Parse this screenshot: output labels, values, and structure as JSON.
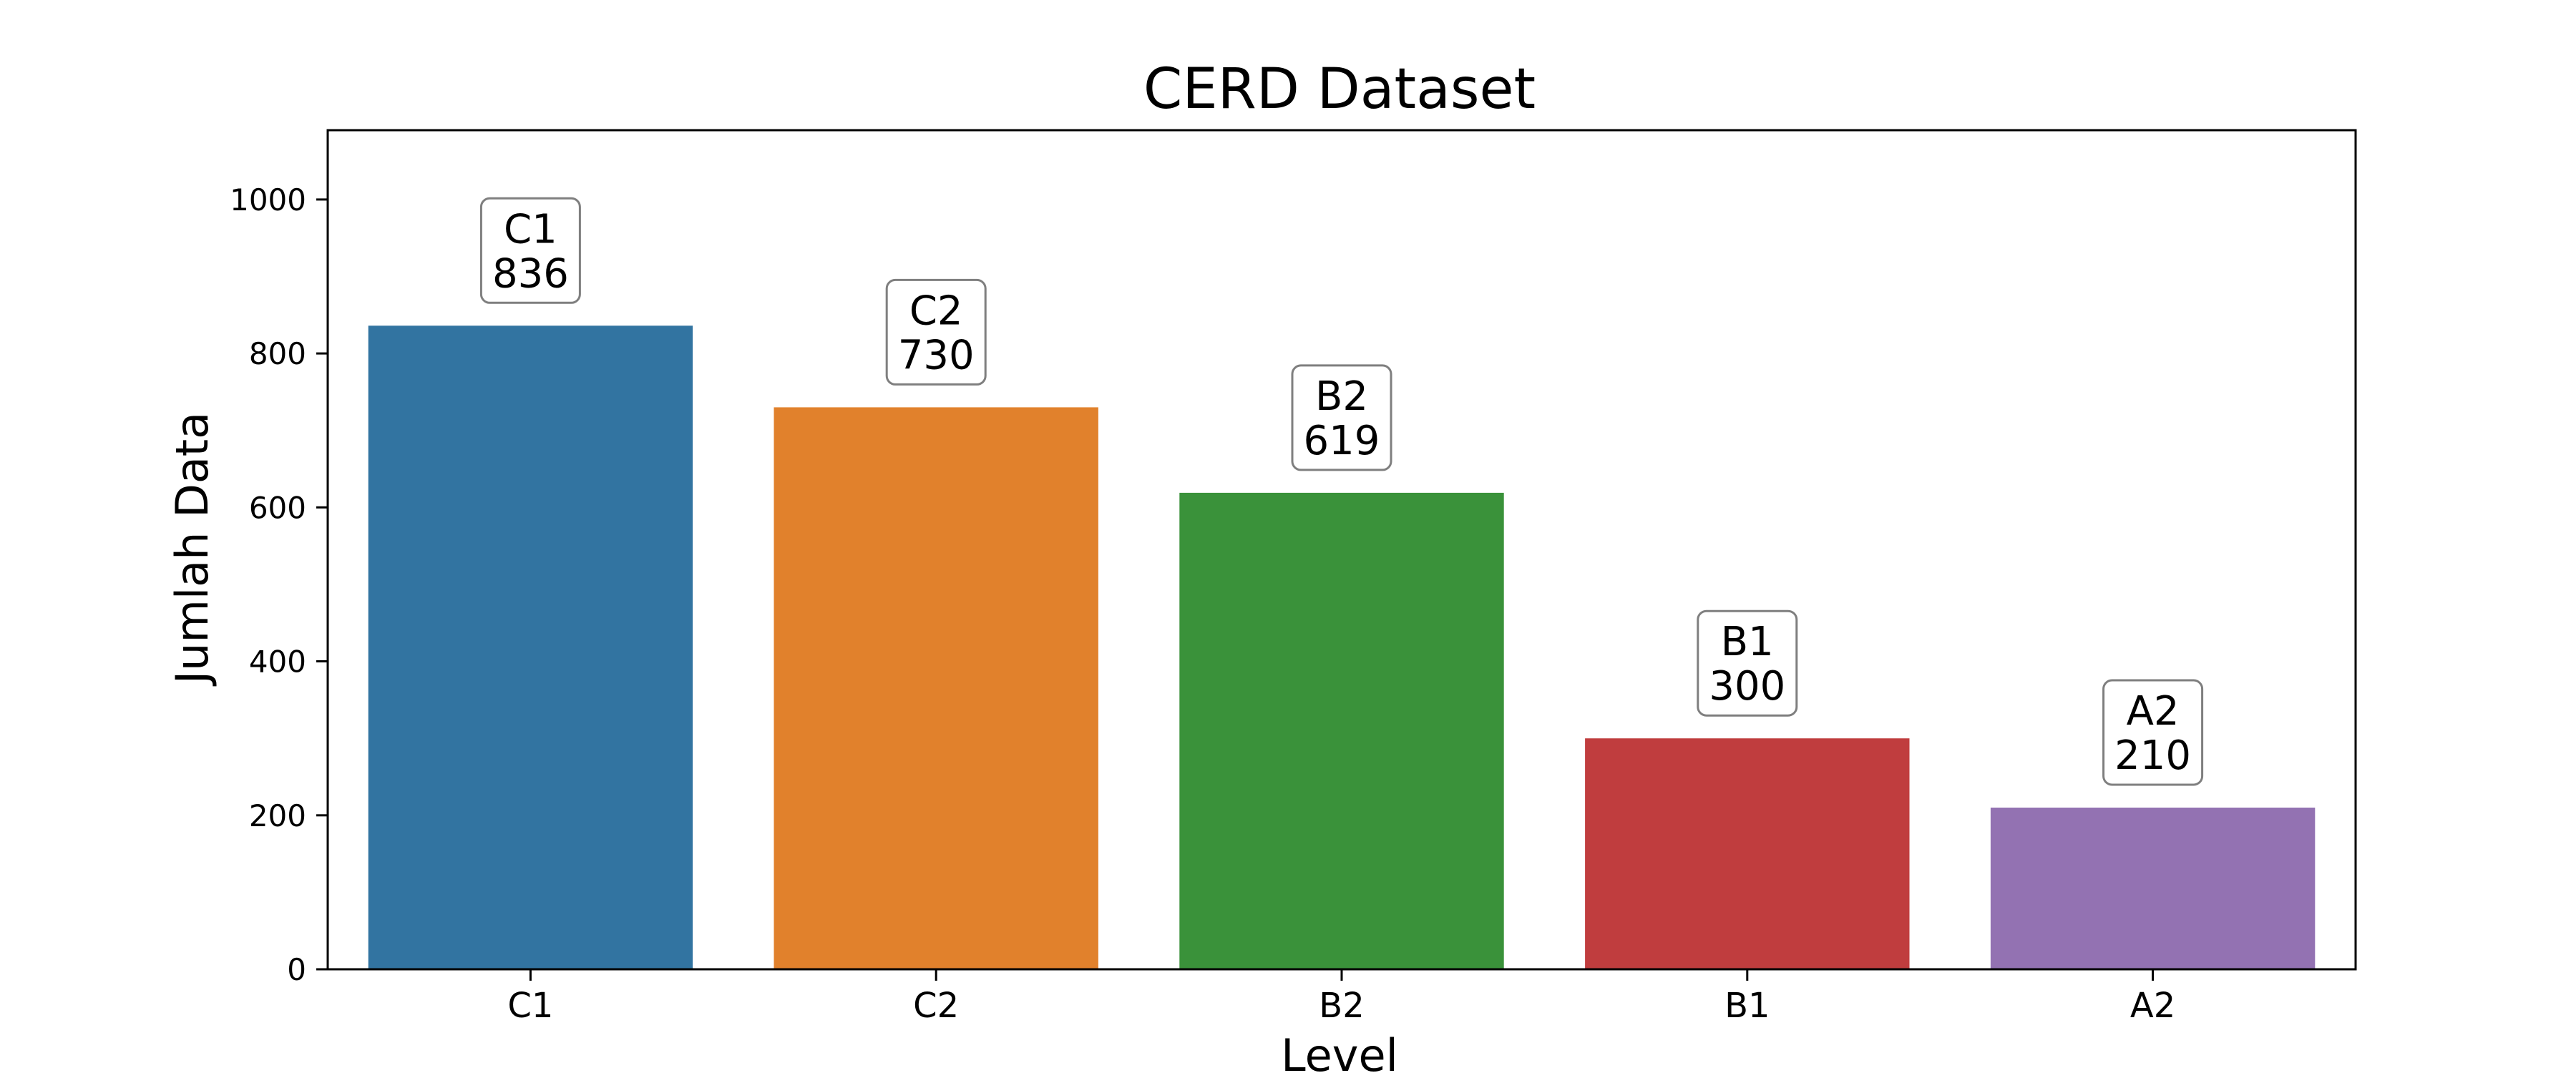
{
  "chart_data": {
    "type": "bar",
    "title": "CERD Dataset",
    "xlabel": "Level",
    "ylabel": "Jumlah Data",
    "categories": [
      "C1",
      "C2",
      "B2",
      "B1",
      "A2"
    ],
    "values": [
      836,
      730,
      619,
      300,
      210
    ],
    "bar_labels": [
      {
        "category": "C1",
        "value": "836"
      },
      {
        "category": "C2",
        "value": "730"
      },
      {
        "category": "B2",
        "value": "619"
      },
      {
        "category": "B1",
        "value": "300"
      },
      {
        "category": "A2",
        "value": "210"
      }
    ],
    "colors": [
      "#3274a1",
      "#e1812c",
      "#3a923a",
      "#c03d3e",
      "#9372b2"
    ],
    "ylim": [
      0,
      1090
    ],
    "yticks": [
      0,
      200,
      400,
      600,
      800,
      1000
    ],
    "ytick_labels": [
      "0",
      "200",
      "400",
      "600",
      "800",
      "1000"
    ],
    "grid": false,
    "legend": "none"
  }
}
